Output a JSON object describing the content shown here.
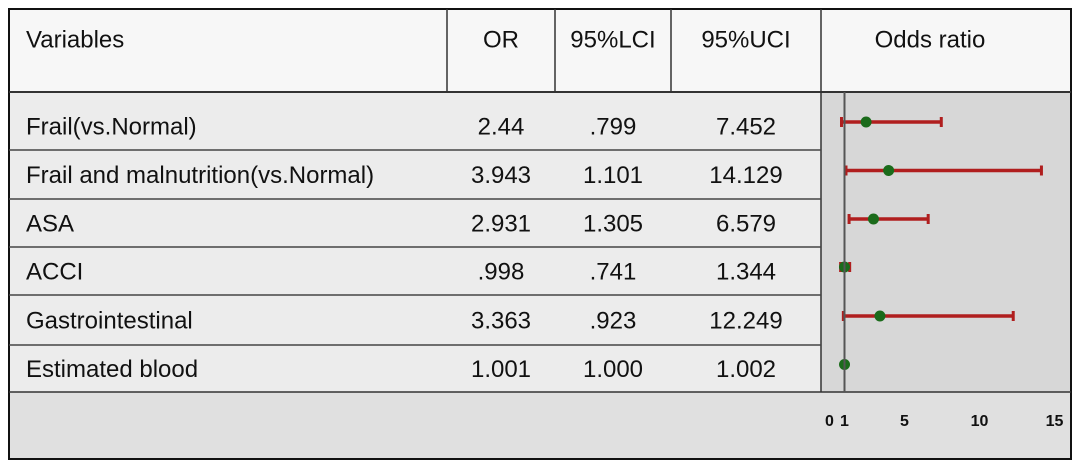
{
  "table": {
    "columns": [
      "Variables",
      "OR",
      "95%LCI",
      "95%UCI",
      "Odds ratio"
    ],
    "rows": [
      [
        "Frail(vs.Normal)",
        2.44,
        {
          "value": 0.799,
          "label": ".799"
        },
        7.452
      ],
      [
        "Frail and malnutrition(vs.Normal)",
        3.943,
        1.101,
        14.129
      ],
      [
        "ASA",
        2.931,
        1.305,
        6.579
      ],
      [
        "ACCI",
        {
          "value": 0.998,
          "label": ".998"
        },
        {
          "value": 0.741,
          "label": ".741"
        },
        1.344
      ],
      [
        "Gastrointestinal",
        3.363,
        {
          "value": 0.923,
          "label": ".923"
        },
        12.249
      ],
      [
        "Estimated blood",
        1.001,
        {
          "value": 1.0,
          "label": "1.000"
        },
        1.002
      ]
    ]
  },
  "forest": {
    "xlim": [
      -0.5,
      15.5
    ],
    "xticks": [
      0,
      1,
      5,
      10,
      15
    ],
    "ref_line": 1,
    "point_color": "#1b6b1b",
    "ci_color": "#b01e1e"
  }
}
